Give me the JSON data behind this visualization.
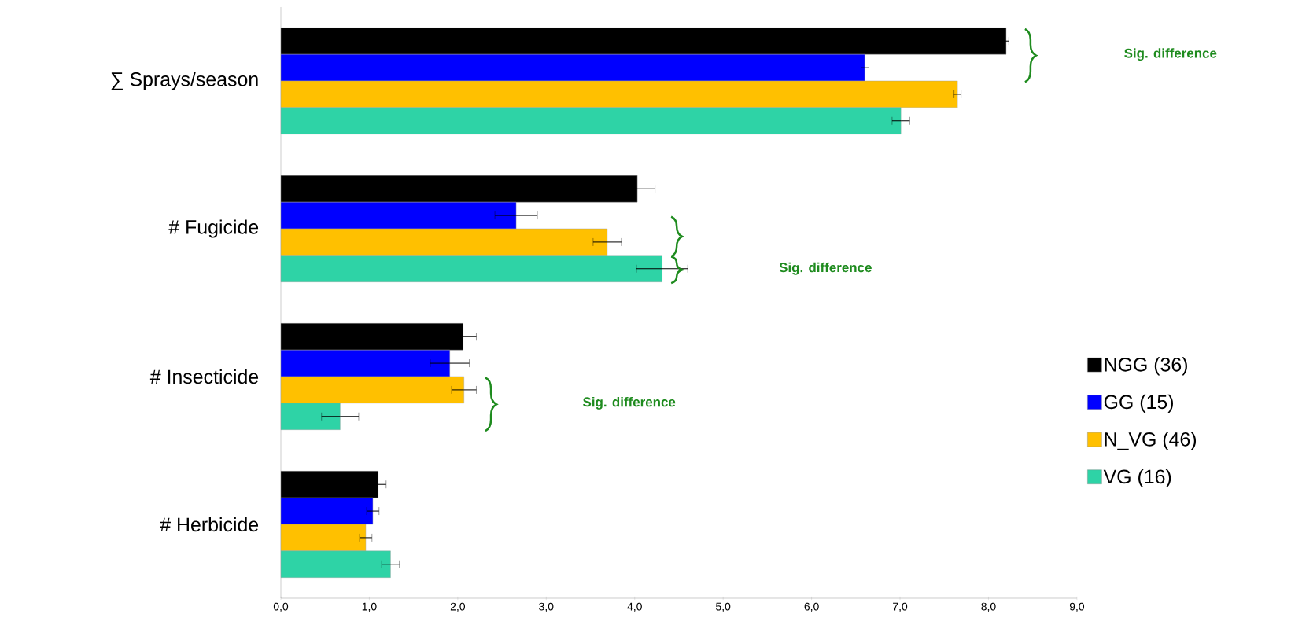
{
  "chart_data": {
    "type": "bar",
    "orientation": "horizontal",
    "categories": [
      "∑ Sprays/season",
      "# Fugicide",
      "# Insecticide",
      "# Herbicide"
    ],
    "series": [
      {
        "name": "NGG (36)",
        "color": "#000000",
        "values": [
          8.2,
          4.03,
          2.06,
          1.1
        ],
        "errors": [
          0.03,
          0.2,
          0.15,
          0.09
        ]
      },
      {
        "name": "GG (15)",
        "color": "#0000ff",
        "values": [
          6.6,
          2.66,
          1.91,
          1.04
        ],
        "errors": [
          0,
          0.24,
          0.22,
          0.07
        ]
      },
      {
        "name": "N_VG (46)",
        "color": "#ffc000",
        "values": [
          7.65,
          3.69,
          2.07,
          0.96
        ],
        "errors": [
          0.04,
          0.16,
          0.14,
          0.07
        ]
      },
      {
        "name": "VG (16)",
        "color": "#2ed3a6",
        "values": [
          7.01,
          4.31,
          0.67,
          1.24
        ],
        "errors": [
          0.1,
          0.29,
          0.21,
          0.1
        ]
      }
    ],
    "xlim": [
      0,
      9
    ],
    "xticks": [
      {
        "value": 0,
        "label": "0,0"
      },
      {
        "value": 1,
        "label": "1,0"
      },
      {
        "value": 2,
        "label": "2,0"
      },
      {
        "value": 3,
        "label": "3,0"
      },
      {
        "value": 4,
        "label": "4,0"
      },
      {
        "value": 5,
        "label": "5,0"
      },
      {
        "value": 6,
        "label": "6,0"
      },
      {
        "value": 7,
        "label": "7,0"
      },
      {
        "value": 8,
        "label": "8,0"
      },
      {
        "value": 9,
        "label": "9,0"
      }
    ],
    "annotations": [
      "Sig. difference",
      "Sig. difference",
      "Sig. difference"
    ],
    "legend": "right",
    "grid": false
  }
}
